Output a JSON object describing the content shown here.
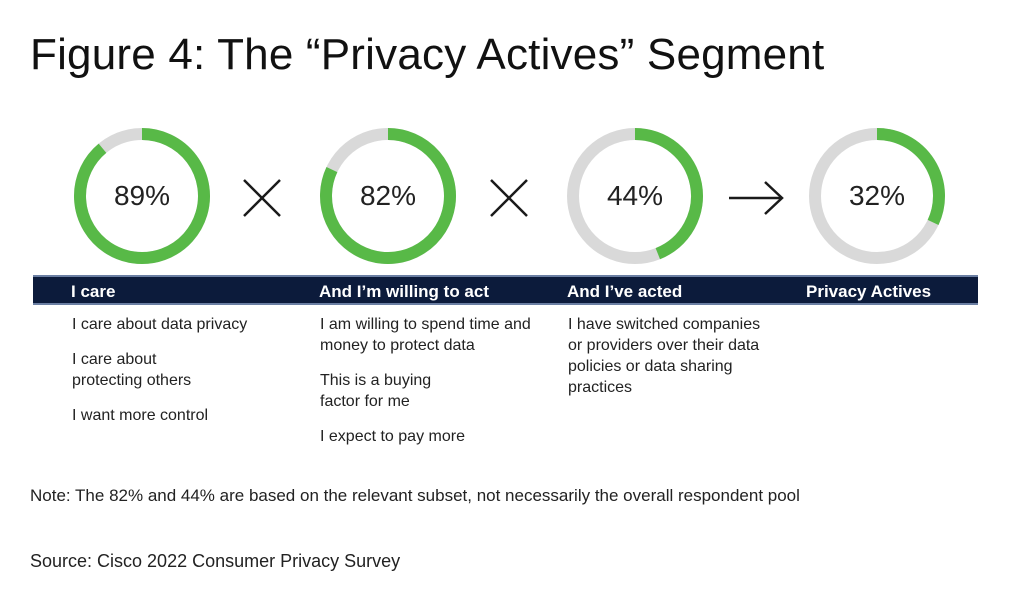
{
  "title": "Figure 4: The “Privacy Actives” Segment",
  "colors": {
    "arc": "#58b947",
    "track": "#d9d9d9",
    "banner": "#0c1b3b",
    "operator": "#1a1a1a"
  },
  "operators": [
    "times-icon",
    "times-icon",
    "arrow-right-icon"
  ],
  "chart_data": {
    "type": "donut",
    "series": [
      {
        "value": 89,
        "label": "89%",
        "category": "I care",
        "descriptions": [
          "I care about data privacy",
          "I care about protecting others",
          "I want more control"
        ]
      },
      {
        "value": 82,
        "label": "82%",
        "category": "And I’m willing to act",
        "descriptions": [
          "I am willing to spend time and money to protect data",
          "This is a buying factor for me",
          "I expect to pay more"
        ]
      },
      {
        "value": 44,
        "label": "44%",
        "category": "And I’ve acted",
        "descriptions": [
          "I have switched companies or providers over their data policies or data sharing practices"
        ]
      },
      {
        "value": 32,
        "label": "32%",
        "category": "Privacy Actives",
        "descriptions": []
      }
    ]
  },
  "note": "Note: The 82% and 44% are based on the relevant subset, not necessarily the overall respondent pool",
  "source": "Source: Cisco 2022 Consumer Privacy Survey"
}
